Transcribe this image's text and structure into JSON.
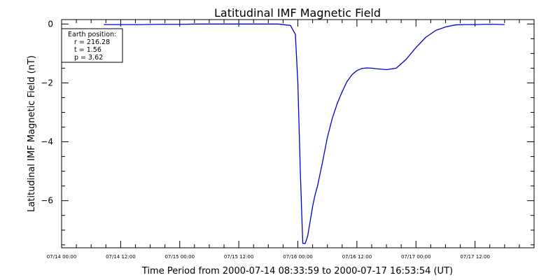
{
  "chart_data": {
    "type": "line",
    "title": "Latitudinal IMF Magnetic Field",
    "xlabel": "Time Period from 2000-07-14 08:33:59 to 2000-07-17 16:53:54 (UT)",
    "ylabel": "Latitudinal IMF Magnetic Field (nT)",
    "x_tick_labels": [
      "07/14 00:00",
      "07/14 12:00",
      "07/15 00:00",
      "07/15 12:00",
      "07/16 00:00",
      "07/16 12:00",
      "07/17 00:00",
      "07/17 12:00"
    ],
    "y_ticks": [
      0,
      -2,
      -4,
      -6
    ],
    "xlim_hours_from_0714_0000": [
      0,
      96
    ],
    "ylim": [
      -7.6,
      0.15
    ],
    "grid": false,
    "legend_box": {
      "placement": "top-left",
      "lines": [
        "Earth position:",
        "r = 216.28",
        "t = 1.56",
        "p = 3.62"
      ]
    },
    "series": [
      {
        "color": "#0000cc",
        "x_hours_from_0714_0000": [
          8.57,
          12,
          16,
          20,
          24,
          28,
          32,
          36,
          40,
          44,
          46.5,
          47.5,
          48.0,
          48.5,
          49.0,
          49.5,
          50.0,
          50.5,
          51.0,
          51.5,
          52.0,
          53.0,
          54.0,
          55.0,
          56.0,
          57.0,
          58.0,
          59.0,
          60.0,
          61.0,
          62.0,
          63.0,
          64.0,
          66.0,
          68.0,
          70.0,
          72.0,
          74.0,
          76.0,
          78.0,
          80.0,
          82.0,
          84.0,
          86.0,
          88.0,
          90.0
        ],
        "values": [
          -0.02,
          -0.02,
          -0.02,
          -0.01,
          -0.01,
          0.0,
          0.0,
          0.0,
          0.0,
          0.0,
          -0.05,
          -0.35,
          -2.0,
          -5.0,
          -7.45,
          -7.45,
          -7.2,
          -6.7,
          -6.2,
          -5.8,
          -5.5,
          -4.7,
          -3.85,
          -3.2,
          -2.7,
          -2.3,
          -1.95,
          -1.72,
          -1.58,
          -1.51,
          -1.49,
          -1.5,
          -1.52,
          -1.55,
          -1.5,
          -1.2,
          -0.8,
          -0.45,
          -0.22,
          -0.1,
          -0.03,
          -0.02,
          -0.02,
          -0.01,
          -0.01,
          -0.02
        ]
      }
    ]
  }
}
